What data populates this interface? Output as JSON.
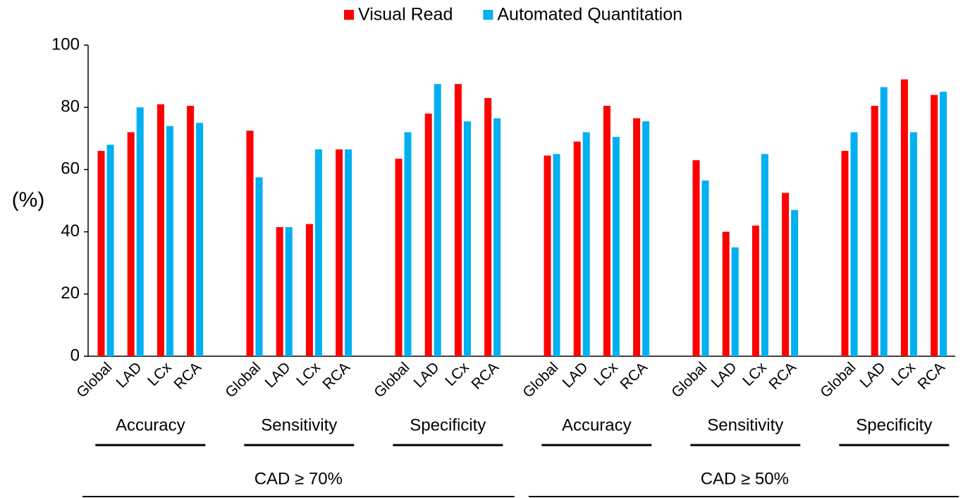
{
  "chart_data": {
    "type": "bar",
    "y_label": "(%)",
    "categories": [
      "Global",
      "LAD",
      "LCx",
      "RCA",
      "Global",
      "LAD",
      "LCx",
      "RCA",
      "Global",
      "LAD",
      "LCx",
      "RCA",
      "Global",
      "LAD",
      "LCx",
      "RCA",
      "Global",
      "LAD",
      "LCx",
      "RCA",
      "Global",
      "LAD",
      "LCx",
      "RCA"
    ],
    "groups": [
      "Accuracy",
      "Sensitivity",
      "Specificity",
      "Accuracy",
      "Sensitivity",
      "Specificity"
    ],
    "supergroups": [
      "CAD ≥ 70%",
      "CAD ≥ 50%"
    ],
    "series": [
      {
        "name": "Visual Read",
        "color": "#ff0000",
        "values": [
          66,
          72,
          81,
          80.5,
          72.5,
          41.5,
          42.5,
          66.5,
          63.5,
          78,
          87.5,
          83,
          64.5,
          69,
          80.5,
          76.5,
          63,
          40,
          42,
          52.5,
          66,
          80.5,
          89,
          84
        ]
      },
      {
        "name": "Automated Quantitation",
        "color": "#00b0f0",
        "values": [
          68,
          80,
          74,
          75,
          57.5,
          41.5,
          66.5,
          66.5,
          72,
          87.5,
          75.5,
          76.5,
          65,
          72,
          70.5,
          75.5,
          56.5,
          35,
          65,
          47,
          72,
          86.5,
          72,
          85
        ]
      }
    ],
    "ylim": [
      0,
      100
    ],
    "yticks": [
      0,
      20,
      40,
      60,
      80,
      100
    ],
    "grid": false,
    "legend": "top"
  }
}
